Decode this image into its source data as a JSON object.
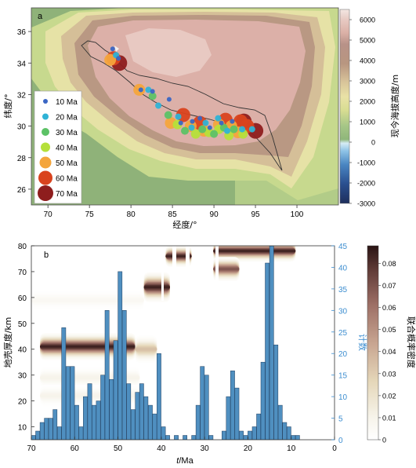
{
  "chart_data": [
    {
      "type": "scatter",
      "panel_label": "a",
      "xlabel": "经度/°",
      "ylabel": "纬度/°",
      "xticks": [
        70,
        75,
        80,
        85,
        90,
        95,
        100
      ],
      "yticks": [
        26,
        28,
        30,
        32,
        34,
        36
      ],
      "xlim": [
        68,
        105
      ],
      "ylim": [
        25,
        37.5
      ],
      "colorbar": {
        "label": "现今海拔高度/m",
        "ticks": [
          6000,
          5000,
          4000,
          3000,
          2000,
          1000,
          0,
          -1000,
          -2000,
          -3000
        ],
        "range": [
          -3000,
          6500
        ]
      },
      "legend": [
        {
          "label": "10 Ma",
          "color": "#3a66c4",
          "size": 3
        },
        {
          "label": "20 Ma",
          "color": "#2fb3d6",
          "size": 4
        },
        {
          "label": "30 Ma",
          "color": "#5cc266",
          "size": 5
        },
        {
          "label": "40 Ma",
          "color": "#b5e03a",
          "size": 6
        },
        {
          "label": "50 Ma",
          "color": "#f4a53c",
          "size": 7.5
        },
        {
          "label": "60 Ma",
          "color": "#d9431e",
          "size": 9
        },
        {
          "label": "70 Ma",
          "color": "#8e1d1d",
          "size": 10
        }
      ],
      "series": [
        {
          "age": 70,
          "points": [
            [
              78.6,
              34.0
            ],
            [
              95.0,
              29.7
            ],
            [
              93.6,
              30.3
            ]
          ]
        },
        {
          "age": 60,
          "points": [
            [
              77.9,
              34.3
            ],
            [
              86.3,
              30.7
            ],
            [
              88.3,
              30.2
            ],
            [
              91.4,
              30.4
            ],
            [
              93.2,
              30.3
            ],
            [
              94.0,
              30.0
            ]
          ]
        },
        {
          "age": 50,
          "points": [
            [
              77.5,
              34.2
            ],
            [
              81.0,
              32.3
            ],
            [
              84.8,
              30.2
            ],
            [
              87.2,
              30.0
            ],
            [
              88.8,
              29.7
            ],
            [
              90.6,
              30.1
            ],
            [
              92.1,
              30.0
            ],
            [
              92.9,
              29.6
            ]
          ]
        },
        {
          "age": 40,
          "points": [
            [
              85.6,
              30.1
            ],
            [
              87.8,
              29.5
            ],
            [
              89.4,
              29.6
            ],
            [
              90.6,
              29.8
            ],
            [
              91.8,
              29.4
            ],
            [
              93.5,
              29.5
            ]
          ]
        },
        {
          "age": 30,
          "points": [
            [
              82.6,
              31.9
            ],
            [
              84.5,
              30.7
            ],
            [
              86.5,
              29.7
            ],
            [
              88.6,
              29.8
            ],
            [
              90.0,
              29.5
            ],
            [
              91.2,
              29.9
            ],
            [
              92.4,
              29.8
            ]
          ]
        },
        {
          "age": 20,
          "points": [
            [
              78.2,
              34.5
            ],
            [
              82.1,
              32.3
            ],
            [
              83.3,
              31.3
            ],
            [
              85.7,
              30.6
            ],
            [
              87.3,
              29.9
            ],
            [
              89.0,
              30.2
            ],
            [
              90.5,
              30.5
            ],
            [
              91.6,
              29.7
            ],
            [
              93.4,
              29.8
            ],
            [
              94.6,
              29.8
            ]
          ]
        },
        {
          "age": 10,
          "points": [
            [
              77.8,
              34.9
            ],
            [
              78.5,
              34.3
            ],
            [
              81.2,
              32.3
            ],
            [
              82.6,
              32.2
            ],
            [
              84.6,
              31.7
            ],
            [
              86.0,
              30.2
            ],
            [
              87.4,
              30.3
            ],
            [
              88.3,
              30.5
            ],
            [
              89.5,
              29.9
            ],
            [
              90.9,
              30.2
            ],
            [
              92.2,
              30.3
            ]
          ]
        }
      ]
    },
    {
      "type": "bar",
      "panel_label": "b",
      "xlabel_italic": "t",
      "xlabel_rest": "/Ma",
      "ylabel": "地壳厚度/km",
      "ylabel_right": "计数",
      "colorbar_label": "联合概率密度",
      "xlim": [
        70,
        0
      ],
      "ylim": [
        5,
        80
      ],
      "ylim_right": [
        0,
        45
      ],
      "xticks": [
        70,
        60,
        50,
        40,
        30,
        20,
        10,
        0
      ],
      "yticks": [
        10,
        20,
        30,
        40,
        50,
        60,
        70,
        80
      ],
      "yticks_right": [
        0,
        5,
        10,
        15,
        20,
        25,
        30,
        35,
        40,
        45
      ],
      "colorbar_ticks": [
        0,
        0.01,
        0.02,
        0.03,
        0.04,
        0.05,
        0.06,
        0.07,
        0.08
      ],
      "colorbar_range": [
        0,
        0.088
      ],
      "bar_color": "#4f8fc0",
      "bars": [
        {
          "x": 69.5,
          "count": 1
        },
        {
          "x": 68.5,
          "count": 2
        },
        {
          "x": 67.5,
          "count": 4
        },
        {
          "x": 66.5,
          "count": 5
        },
        {
          "x": 65.5,
          "count": 5
        },
        {
          "x": 64.5,
          "count": 7
        },
        {
          "x": 63.5,
          "count": 3
        },
        {
          "x": 62.5,
          "count": 26
        },
        {
          "x": 61.5,
          "count": 17
        },
        {
          "x": 60.5,
          "count": 17
        },
        {
          "x": 59.5,
          "count": 8
        },
        {
          "x": 58.5,
          "count": 3
        },
        {
          "x": 57.5,
          "count": 10
        },
        {
          "x": 56.5,
          "count": 13
        },
        {
          "x": 55.5,
          "count": 8
        },
        {
          "x": 54.5,
          "count": 9
        },
        {
          "x": 53.5,
          "count": 15
        },
        {
          "x": 52.5,
          "count": 30
        },
        {
          "x": 51.5,
          "count": 14
        },
        {
          "x": 50.5,
          "count": 23
        },
        {
          "x": 49.5,
          "count": 39
        },
        {
          "x": 48.5,
          "count": 30
        },
        {
          "x": 47.5,
          "count": 13
        },
        {
          "x": 46.5,
          "count": 7
        },
        {
          "x": 45.5,
          "count": 11
        },
        {
          "x": 44.5,
          "count": 13
        },
        {
          "x": 43.5,
          "count": 10
        },
        {
          "x": 42.5,
          "count": 8
        },
        {
          "x": 41.5,
          "count": 6
        },
        {
          "x": 40.5,
          "count": 20
        },
        {
          "x": 39.5,
          "count": 3
        },
        {
          "x": 38.5,
          "count": 1
        },
        {
          "x": 37.5,
          "count": 0
        },
        {
          "x": 36.5,
          "count": 1
        },
        {
          "x": 35.5,
          "count": 0
        },
        {
          "x": 34.5,
          "count": 1
        },
        {
          "x": 33.5,
          "count": 0
        },
        {
          "x": 32.5,
          "count": 1
        },
        {
          "x": 31.5,
          "count": 8
        },
        {
          "x": 30.5,
          "count": 17
        },
        {
          "x": 29.5,
          "count": 15
        },
        {
          "x": 28.5,
          "count": 1
        },
        {
          "x": 27.5,
          "count": 0
        },
        {
          "x": 26.5,
          "count": 0
        },
        {
          "x": 25.5,
          "count": 2
        },
        {
          "x": 24.5,
          "count": 10
        },
        {
          "x": 23.5,
          "count": 16
        },
        {
          "x": 22.5,
          "count": 12
        },
        {
          "x": 21.5,
          "count": 2
        },
        {
          "x": 20.5,
          "count": 1
        },
        {
          "x": 19.5,
          "count": 2
        },
        {
          "x": 18.5,
          "count": 3
        },
        {
          "x": 17.5,
          "count": 6
        },
        {
          "x": 16.5,
          "count": 18
        },
        {
          "x": 15.5,
          "count": 41
        },
        {
          "x": 14.5,
          "count": 45
        },
        {
          "x": 13.5,
          "count": 22
        },
        {
          "x": 12.5,
          "count": 8
        },
        {
          "x": 11.5,
          "count": 4
        },
        {
          "x": 10.5,
          "count": 3
        },
        {
          "x": 9.5,
          "count": 1
        },
        {
          "x": 8.5,
          "count": 1
        }
      ],
      "density_bands": [
        {
          "x0": 68,
          "x1": 46,
          "y": 41,
          "sigma": 2.0,
          "peak": 0.085
        },
        {
          "x0": 46,
          "x1": 41,
          "y": 40,
          "sigma": 2.0,
          "peak": 0.035
        },
        {
          "x0": 44,
          "x1": 38,
          "y": 64,
          "sigma": 2.2,
          "peak": 0.085
        },
        {
          "x0": 39,
          "x1": 33,
          "y": 76,
          "sigma": 1.6,
          "peak": 0.085
        },
        {
          "x0": 28,
          "x1": 9,
          "y": 78,
          "sigma": 1.6,
          "peak": 0.085
        },
        {
          "x0": 28,
          "x1": 22,
          "y": 71,
          "sigma": 1.8,
          "peak": 0.07
        },
        {
          "x0": 68,
          "x1": 45,
          "y": 29,
          "sigma": 1.6,
          "peak": 0.01
        },
        {
          "x0": 68,
          "x1": 44,
          "y": 22,
          "sigma": 1.6,
          "peak": 0.01
        },
        {
          "x0": 70,
          "x1": 44,
          "y": 59,
          "sigma": 1.6,
          "peak": 0.006
        }
      ]
    }
  ]
}
